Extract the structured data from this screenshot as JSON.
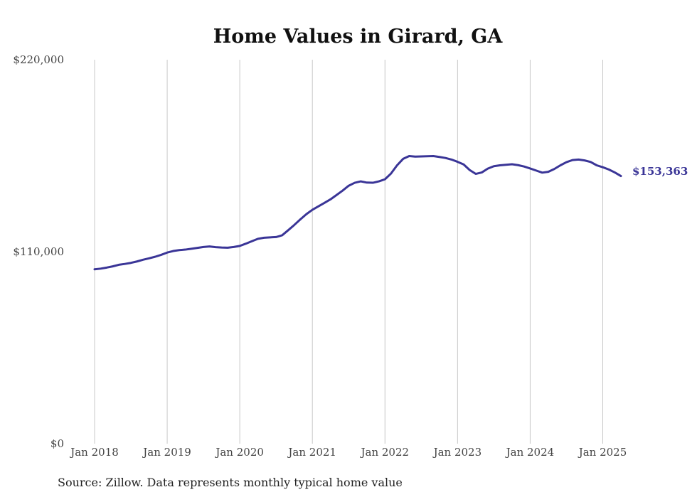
{
  "chart_data": {
    "type": "line",
    "title": "Home Values in Girard, GA",
    "xlabel": "",
    "ylabel": "",
    "source": "Source: Zillow. Data represents monthly typical home value",
    "ylim": [
      0,
      220000
    ],
    "y_ticks": [
      {
        "value": 0,
        "label": "$0"
      },
      {
        "value": 110000,
        "label": "$110,000"
      },
      {
        "value": 220000,
        "label": "$220,000"
      }
    ],
    "x_ticks": [
      {
        "value": "2018-01",
        "label": "Jan 2018"
      },
      {
        "value": "2019-01",
        "label": "Jan 2019"
      },
      {
        "value": "2020-01",
        "label": "Jan 2020"
      },
      {
        "value": "2021-01",
        "label": "Jan 2021"
      },
      {
        "value": "2022-01",
        "label": "Jan 2022"
      },
      {
        "value": "2023-01",
        "label": "Jan 2023"
      },
      {
        "value": "2024-01",
        "label": "Jan 2024"
      },
      {
        "value": "2025-01",
        "label": "Jan 2025"
      }
    ],
    "vertical_grid": true,
    "horizontal_grid": false,
    "legend": "none",
    "line_color": "#3a3597",
    "end_label": "$153,363",
    "series": [
      {
        "x": [
          "2018-01",
          "2018-02",
          "2018-03",
          "2018-04",
          "2018-05",
          "2018-06",
          "2018-07",
          "2018-08",
          "2018-09",
          "2018-10",
          "2018-11",
          "2018-12",
          "2019-01",
          "2019-02",
          "2019-03",
          "2019-04",
          "2019-05",
          "2019-06",
          "2019-07",
          "2019-08",
          "2019-09",
          "2019-10",
          "2019-11",
          "2019-12",
          "2020-01",
          "2020-02",
          "2020-03",
          "2020-04",
          "2020-05",
          "2020-06",
          "2020-07",
          "2020-08",
          "2020-09",
          "2020-10",
          "2020-11",
          "2020-12",
          "2021-01",
          "2021-02",
          "2021-03",
          "2021-04",
          "2021-05",
          "2021-06",
          "2021-07",
          "2021-08",
          "2021-09",
          "2021-10",
          "2021-11",
          "2021-12",
          "2022-01",
          "2022-02",
          "2022-03",
          "2022-04",
          "2022-05",
          "2022-06",
          "2022-07",
          "2022-08",
          "2022-09",
          "2022-10",
          "2022-11",
          "2022-12",
          "2023-01",
          "2023-02",
          "2023-03",
          "2023-04",
          "2023-05",
          "2023-06",
          "2023-07",
          "2023-08",
          "2023-09",
          "2023-10",
          "2023-11",
          "2023-12",
          "2024-01",
          "2024-02",
          "2024-03",
          "2024-04",
          "2024-05",
          "2024-06",
          "2024-07",
          "2024-08",
          "2024-09",
          "2024-10",
          "2024-11",
          "2024-12",
          "2025-01",
          "2025-02",
          "2025-03",
          "2025-04"
        ],
        "y": [
          99900,
          100300,
          100900,
          101600,
          102500,
          103000,
          103600,
          104400,
          105400,
          106200,
          107100,
          108200,
          109500,
          110400,
          110900,
          111200,
          111700,
          112200,
          112700,
          113000,
          112600,
          112400,
          112300,
          112700,
          113300,
          114600,
          116000,
          117400,
          118000,
          118200,
          118400,
          119400,
          122300,
          125300,
          128500,
          131500,
          134000,
          136000,
          138000,
          140000,
          142500,
          145000,
          147800,
          149500,
          150300,
          149600,
          149500,
          150300,
          151500,
          154800,
          159500,
          163200,
          164800,
          164500,
          164600,
          164700,
          164800,
          164300,
          163700,
          162800,
          161500,
          160000,
          156800,
          154600,
          155400,
          157600,
          159000,
          159500,
          159800,
          160100,
          159600,
          158800,
          157700,
          156500,
          155300,
          155800,
          157400,
          159500,
          161300,
          162500,
          162800,
          162300,
          161400,
          159500,
          158400,
          157100,
          155400,
          153363
        ]
      }
    ]
  }
}
